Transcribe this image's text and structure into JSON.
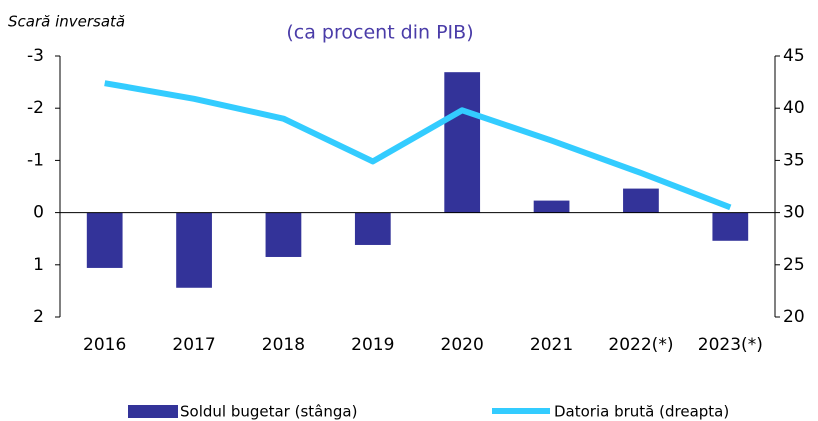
{
  "chart_data": {
    "type": "bar_line",
    "subtitle": "(ca procent din PIB)",
    "annotation": "Scară inversată",
    "categories": [
      "2016",
      "2017",
      "2018",
      "2019",
      "2020",
      "2021",
      "2022(*)",
      "2023(*)"
    ],
    "series": [
      {
        "name": "Soldul bugetar (stânga)",
        "type": "bar",
        "color": "#333399",
        "axis": "y",
        "values": [
          1.06,
          1.44,
          0.85,
          0.62,
          -2.69,
          -0.23,
          -0.46,
          0.54
        ]
      },
      {
        "name": "Datoria brută (dreapta)",
        "type": "line",
        "color": "#33ccff",
        "axis": "y2",
        "values": [
          42.4,
          40.9,
          39.0,
          34.9,
          39.8,
          36.9,
          33.8,
          30.5
        ]
      }
    ],
    "ylim": [
      -3,
      2
    ],
    "y_inverted": true,
    "yticks": [
      -3,
      -2,
      -1,
      0,
      1,
      2
    ],
    "y2lim": [
      20,
      45
    ],
    "y2ticks": [
      20,
      25,
      30,
      35,
      40,
      45
    ],
    "legend": "bottom"
  }
}
